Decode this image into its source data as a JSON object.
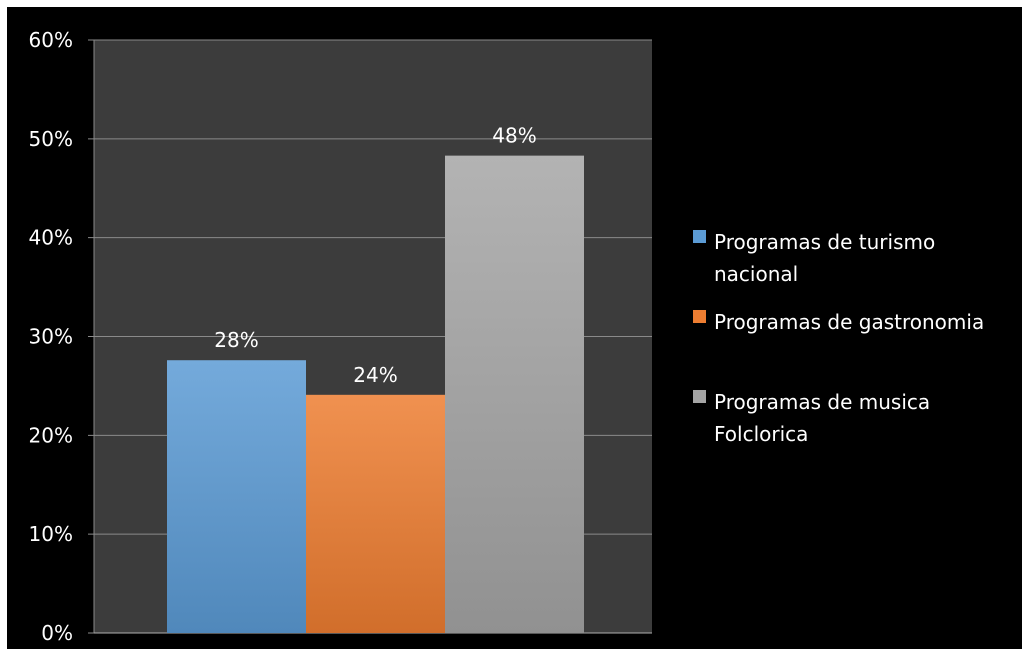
{
  "chart_data": {
    "type": "bar",
    "categories": [
      ""
    ],
    "series": [
      {
        "name": "Programas de turismo nacional",
        "legend_lines": [
          "Programas de turismo",
          "nacional"
        ],
        "values": [
          0.276
        ],
        "label": "28%",
        "color": "#5b9bd5"
      },
      {
        "name": "Programas de gastronomia",
        "legend_lines": [
          "Programas de gastronomia"
        ],
        "values": [
          0.241
        ],
        "label": "24%",
        "color": "#ed7d31"
      },
      {
        "name": "Programas de musica Folclorica",
        "legend_lines": [
          "Programas de musica",
          "Folclorica"
        ],
        "values": [
          0.483
        ],
        "label": "48%",
        "color": "#a5a5a5"
      }
    ],
    "ylim": [
      0,
      0.6
    ],
    "yticks": [
      {
        "value": 0,
        "label": "0%"
      },
      {
        "value": 0.1,
        "label": "10%"
      },
      {
        "value": 0.2,
        "label": "20%"
      },
      {
        "value": 0.3,
        "label": "30%"
      },
      {
        "value": 0.4,
        "label": "40%"
      },
      {
        "value": 0.5,
        "label": "50%"
      },
      {
        "value": 0.6,
        "label": "60%"
      }
    ],
    "title": "",
    "xlabel": "",
    "ylabel": "",
    "grid": true,
    "legend_position": "right",
    "colors": {
      "background": "#000000",
      "plot_area": "#3c3c3c",
      "gridline": "#8a8a8a",
      "text": "#ffffff"
    }
  }
}
